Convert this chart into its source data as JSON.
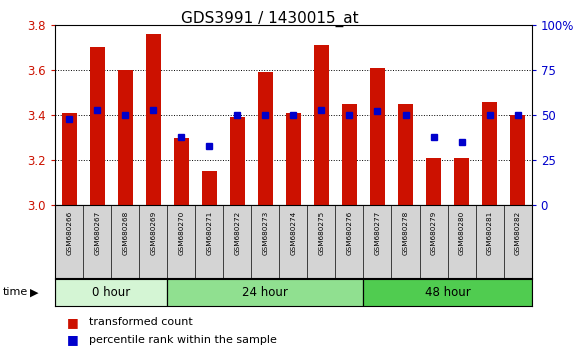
{
  "title": "GDS3991 / 1430015_at",
  "samples": [
    "GSM680266",
    "GSM680267",
    "GSM680268",
    "GSM680269",
    "GSM680270",
    "GSM680271",
    "GSM680272",
    "GSM680273",
    "GSM680274",
    "GSM680275",
    "GSM680276",
    "GSM680277",
    "GSM680278",
    "GSM680279",
    "GSM680280",
    "GSM680281",
    "GSM680282"
  ],
  "transformed_count": [
    3.41,
    3.7,
    3.6,
    3.76,
    3.3,
    3.15,
    3.39,
    3.59,
    3.41,
    3.71,
    3.45,
    3.61,
    3.45,
    3.21,
    3.21,
    3.46,
    3.4
  ],
  "percentile_rank": [
    48,
    53,
    50,
    53,
    38,
    33,
    50,
    50,
    50,
    53,
    50,
    52,
    50,
    38,
    35,
    50,
    50
  ],
  "ylim_left": [
    3.0,
    3.8
  ],
  "ylim_right": [
    0,
    100
  ],
  "yticks_left": [
    3.0,
    3.2,
    3.4,
    3.6,
    3.8
  ],
  "yticks_right": [
    0,
    25,
    50,
    75,
    100
  ],
  "ytick_labels_right": [
    "0",
    "25",
    "50",
    "75",
    "100%"
  ],
  "groups": [
    {
      "label": "0 hour",
      "start": 0,
      "end": 4,
      "color": "#d4f5d4"
    },
    {
      "label": "24 hour",
      "start": 4,
      "end": 11,
      "color": "#90e090"
    },
    {
      "label": "48 hour",
      "start": 11,
      "end": 17,
      "color": "#50cc50"
    }
  ],
  "bar_color": "#cc1100",
  "dot_color": "#0000cc",
  "bar_width": 0.55,
  "bar_bottom": 3.0,
  "legend_items": [
    {
      "label": "transformed count",
      "color": "#cc1100"
    },
    {
      "label": "percentile rank within the sample",
      "color": "#0000cc"
    }
  ]
}
